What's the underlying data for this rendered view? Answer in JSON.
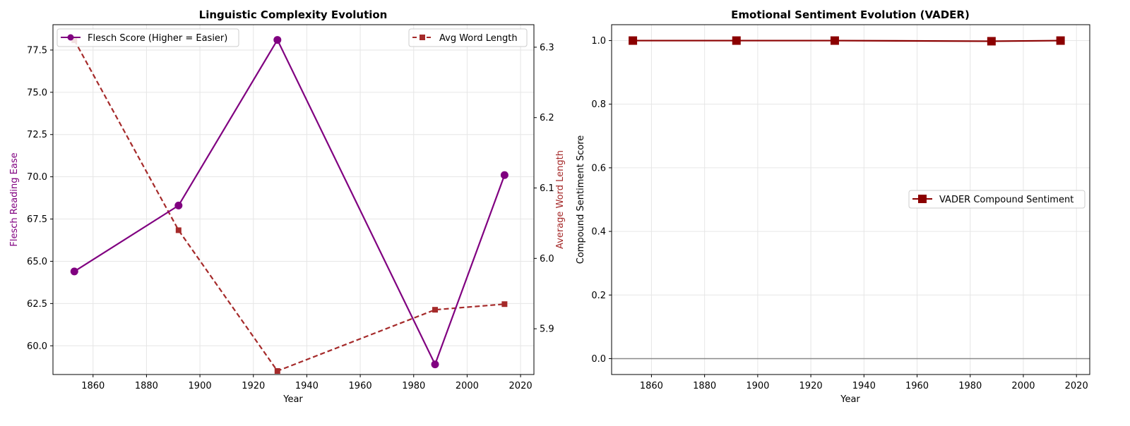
{
  "chart_data": [
    {
      "type": "line",
      "title": "Linguistic Complexity Evolution",
      "xlabel": "Year",
      "ylabel": "Flesch Reading Ease",
      "ylabel_right": "Average Word Length",
      "xlim": [
        1845,
        2025
      ],
      "ylim": [
        58.3,
        79.0
      ],
      "ylim_right": [
        5.835,
        6.332
      ],
      "x_ticks": [
        1860,
        1880,
        1900,
        1920,
        1940,
        1960,
        1980,
        2000,
        2020
      ],
      "y_ticks": [
        60.0,
        62.5,
        65.0,
        67.5,
        70.0,
        72.5,
        75.0,
        77.5
      ],
      "y_ticks_right": [
        5.9,
        6.0,
        6.1,
        6.2,
        6.3
      ],
      "grid": true,
      "series": [
        {
          "name": "Flesch Score (Higher = Easier)",
          "axis": "left",
          "color": "#800080",
          "line_style": "solid",
          "marker": "circle",
          "legend_position": "upper-left",
          "x": [
            1853,
            1892,
            1929,
            1988,
            2014
          ],
          "values": [
            64.4,
            68.3,
            78.1,
            58.9,
            70.1
          ]
        },
        {
          "name": "Avg Word Length",
          "axis": "right",
          "color": "#a52a2a",
          "line_style": "dashed",
          "marker": "square",
          "legend_position": "upper-right",
          "x": [
            1853,
            1892,
            1929,
            1988,
            2014
          ],
          "values": [
            6.31,
            6.04,
            5.84,
            5.927,
            5.935
          ]
        }
      ]
    },
    {
      "type": "line",
      "title": "Emotional Sentiment Evolution (VADER)",
      "xlabel": "Year",
      "ylabel": "Compound Sentiment Score",
      "xlim": [
        1845,
        2025
      ],
      "ylim": [
        -0.05,
        1.05
      ],
      "x_ticks": [
        1860,
        1880,
        1900,
        1920,
        1940,
        1960,
        1980,
        2000,
        2020
      ],
      "y_ticks": [
        0.0,
        0.2,
        0.4,
        0.6,
        0.8,
        1.0
      ],
      "grid": true,
      "reference_line": 0.0,
      "legend_position": "center-right",
      "series": [
        {
          "name": "VADER Compound Sentiment",
          "color": "#8b0000",
          "line_style": "solid",
          "marker": "square",
          "x": [
            1853,
            1892,
            1929,
            1988,
            2014
          ],
          "values": [
            1.0,
            1.0,
            1.0,
            0.998,
            1.0
          ]
        }
      ]
    }
  ]
}
